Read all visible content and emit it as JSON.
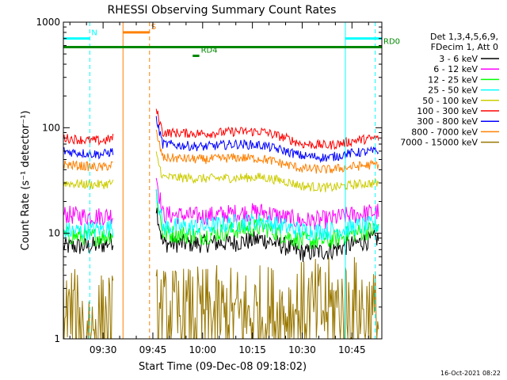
{
  "chart_data": {
    "type": "line",
    "title": "RHESSI Observing Summary Count Rates",
    "xlabel": "Start Time (09-Dec-08 09:18:02)",
    "ylabel": "Count Rate (s⁻¹ detector⁻¹)",
    "yscale": "log",
    "ylim": [
      1,
      1000
    ],
    "xlim": [
      "09:18:02",
      "10:54:00"
    ],
    "y_ticks": [
      "1",
      "10",
      "100",
      "1000"
    ],
    "x_ticks": [
      "09:30",
      "09:45",
      "10:00",
      "10:15",
      "10:30",
      "10:45"
    ],
    "timestamp": "16-Oct-2021 08:22",
    "legend": {
      "placement": "right",
      "header": [
        "Det 1,3,4,5,6,9,",
        "FDecim 1, Att 0"
      ]
    },
    "series": [
      {
        "name": "3 - 6 keV",
        "color": "#000000",
        "points": [
          [
            "09:18",
            7.5
          ],
          [
            "09:25",
            7.5
          ],
          [
            "09:30",
            7.8
          ],
          [
            "09:33",
            8.5
          ],
          [
            "09:46",
            18
          ],
          [
            "09:48",
            8
          ],
          [
            "10:00",
            8
          ],
          [
            "10:10",
            8.2
          ],
          [
            "10:18",
            8.8
          ],
          [
            "10:25",
            7.5
          ],
          [
            "10:30",
            6.5
          ],
          [
            "10:38",
            6.8
          ],
          [
            "10:43",
            7.5
          ],
          [
            "10:46",
            8
          ],
          [
            "10:53",
            9
          ]
        ]
      },
      {
        "name": "6 - 12 keV",
        "color": "#ff00ff",
        "points": [
          [
            "09:18",
            15
          ],
          [
            "09:25",
            14.5
          ],
          [
            "09:30",
            14.5
          ],
          [
            "09:33",
            15
          ],
          [
            "09:46",
            35
          ],
          [
            "09:48",
            15
          ],
          [
            "10:00",
            14.5
          ],
          [
            "10:10",
            15.5
          ],
          [
            "10:18",
            16
          ],
          [
            "10:25",
            14
          ],
          [
            "10:30",
            13
          ],
          [
            "10:38",
            13.5
          ],
          [
            "10:43",
            14.5
          ],
          [
            "10:46",
            15
          ],
          [
            "10:53",
            16
          ]
        ]
      },
      {
        "name": "12 - 25 keV",
        "color": "#00ff00",
        "points": [
          [
            "09:18",
            9.5
          ],
          [
            "09:25",
            9.3
          ],
          [
            "09:30",
            9.3
          ],
          [
            "09:33",
            10
          ],
          [
            "09:46",
            24
          ],
          [
            "09:48",
            10
          ],
          [
            "10:00",
            9.5
          ],
          [
            "10:10",
            10.8
          ],
          [
            "10:18",
            11.5
          ],
          [
            "10:25",
            9.5
          ],
          [
            "10:30",
            8.5
          ],
          [
            "10:38",
            8.5
          ],
          [
            "10:43",
            9.5
          ],
          [
            "10:46",
            10
          ],
          [
            "10:53",
            11
          ]
        ]
      },
      {
        "name": "25 - 50 keV",
        "color": "#00ffff",
        "points": [
          [
            "09:18",
            10.5
          ],
          [
            "09:25",
            10.5
          ],
          [
            "09:30",
            11
          ],
          [
            "09:33",
            11.5
          ],
          [
            "09:46",
            26
          ],
          [
            "09:48",
            11.5
          ],
          [
            "10:00",
            11.5
          ],
          [
            "10:10",
            12.5
          ],
          [
            "10:18",
            13
          ],
          [
            "10:25",
            11.5
          ],
          [
            "10:30",
            10.5
          ],
          [
            "10:38",
            10.5
          ],
          [
            "10:43",
            11
          ],
          [
            "10:46",
            11.5
          ],
          [
            "10:53",
            12
          ]
        ]
      },
      {
        "name": "50 - 100 keV",
        "color": "#cccc00",
        "points": [
          [
            "09:18",
            30
          ],
          [
            "09:25",
            29
          ],
          [
            "09:30",
            29
          ],
          [
            "09:33",
            30
          ],
          [
            "09:46",
            55
          ],
          [
            "09:48",
            34
          ],
          [
            "10:00",
            33
          ],
          [
            "10:10",
            33.5
          ],
          [
            "10:18",
            34
          ],
          [
            "10:25",
            31
          ],
          [
            "10:30",
            28
          ],
          [
            "10:38",
            27
          ],
          [
            "10:43",
            28
          ],
          [
            "10:46",
            29
          ],
          [
            "10:53",
            30
          ]
        ]
      },
      {
        "name": "100 - 300 keV",
        "color": "#ff0000",
        "points": [
          [
            "09:18",
            80
          ],
          [
            "09:25",
            76
          ],
          [
            "09:30",
            75
          ],
          [
            "09:33",
            80
          ],
          [
            "09:46",
            150
          ],
          [
            "09:48",
            90
          ],
          [
            "10:00",
            88
          ],
          [
            "10:10",
            92
          ],
          [
            "10:18",
            92
          ],
          [
            "10:25",
            80
          ],
          [
            "10:30",
            70
          ],
          [
            "10:38",
            68
          ],
          [
            "10:43",
            72
          ],
          [
            "10:46",
            76
          ],
          [
            "10:53",
            80
          ]
        ]
      },
      {
        "name": "300 - 800 keV",
        "color": "#0000ff",
        "points": [
          [
            "09:18",
            60
          ],
          [
            "09:25",
            57
          ],
          [
            "09:30",
            56
          ],
          [
            "09:33",
            60
          ],
          [
            "09:46",
            120
          ],
          [
            "09:48",
            70
          ],
          [
            "10:00",
            66
          ],
          [
            "10:10",
            70
          ],
          [
            "10:18",
            68
          ],
          [
            "10:25",
            60
          ],
          [
            "10:30",
            54
          ],
          [
            "10:38",
            52
          ],
          [
            "10:43",
            56
          ],
          [
            "10:46",
            58
          ],
          [
            "10:53",
            60
          ]
        ]
      },
      {
        "name": "800 - 7000 keV",
        "color": "#ff8000",
        "points": [
          [
            "09:18",
            45
          ],
          [
            "09:25",
            43
          ],
          [
            "09:30",
            42
          ],
          [
            "09:33",
            45
          ],
          [
            "09:46",
            90
          ],
          [
            "09:48",
            52
          ],
          [
            "10:00",
            50
          ],
          [
            "10:10",
            52
          ],
          [
            "10:18",
            51
          ],
          [
            "10:25",
            45
          ],
          [
            "10:30",
            41
          ],
          [
            "10:38",
            40
          ],
          [
            "10:43",
            42
          ],
          [
            "10:46",
            43
          ],
          [
            "10:53",
            45
          ]
        ]
      },
      {
        "name": "7000 - 15000 keV",
        "color": "#997700",
        "points": [
          [
            "09:18",
            1.8
          ],
          [
            "09:25",
            1.2
          ],
          [
            "09:33",
            1.5
          ],
          [
            "10:13",
            1.6
          ],
          [
            "10:46",
            2.0
          ],
          [
            "10:53",
            1.5
          ]
        ]
      }
    ],
    "annotations": [
      {
        "label": "N",
        "color": "#00ffff",
        "span": [
          "09:18",
          "09:26"
        ],
        "level": 700
      },
      {
        "label": "S",
        "color": "#ff8000",
        "span": [
          "09:36",
          "09:44"
        ],
        "level": 800
      },
      {
        "label": "RD0",
        "color": "#008800",
        "span": [
          "09:18",
          "10:54"
        ],
        "level": 580
      },
      {
        "label": "RD4",
        "color": "#008800",
        "span": [
          "09:57",
          "09:59"
        ],
        "level": 480
      },
      {
        "label": "",
        "color": "#00ffff",
        "span": [
          "10:43",
          "10:54"
        ],
        "level": 700
      }
    ],
    "vertical_markers": [
      {
        "time": "09:26",
        "color": "#00ffff",
        "style": "dashed"
      },
      {
        "time": "09:36",
        "color": "#ff8000",
        "style": "solid"
      },
      {
        "time": "09:44",
        "color": "#ff8000",
        "style": "dashed"
      },
      {
        "time": "10:43",
        "color": "#00ffff",
        "style": "solid"
      },
      {
        "time": "10:52",
        "color": "#00ffff",
        "style": "dashed"
      }
    ],
    "gaps": [
      [
        "09:33",
        "09:46"
      ]
    ]
  }
}
